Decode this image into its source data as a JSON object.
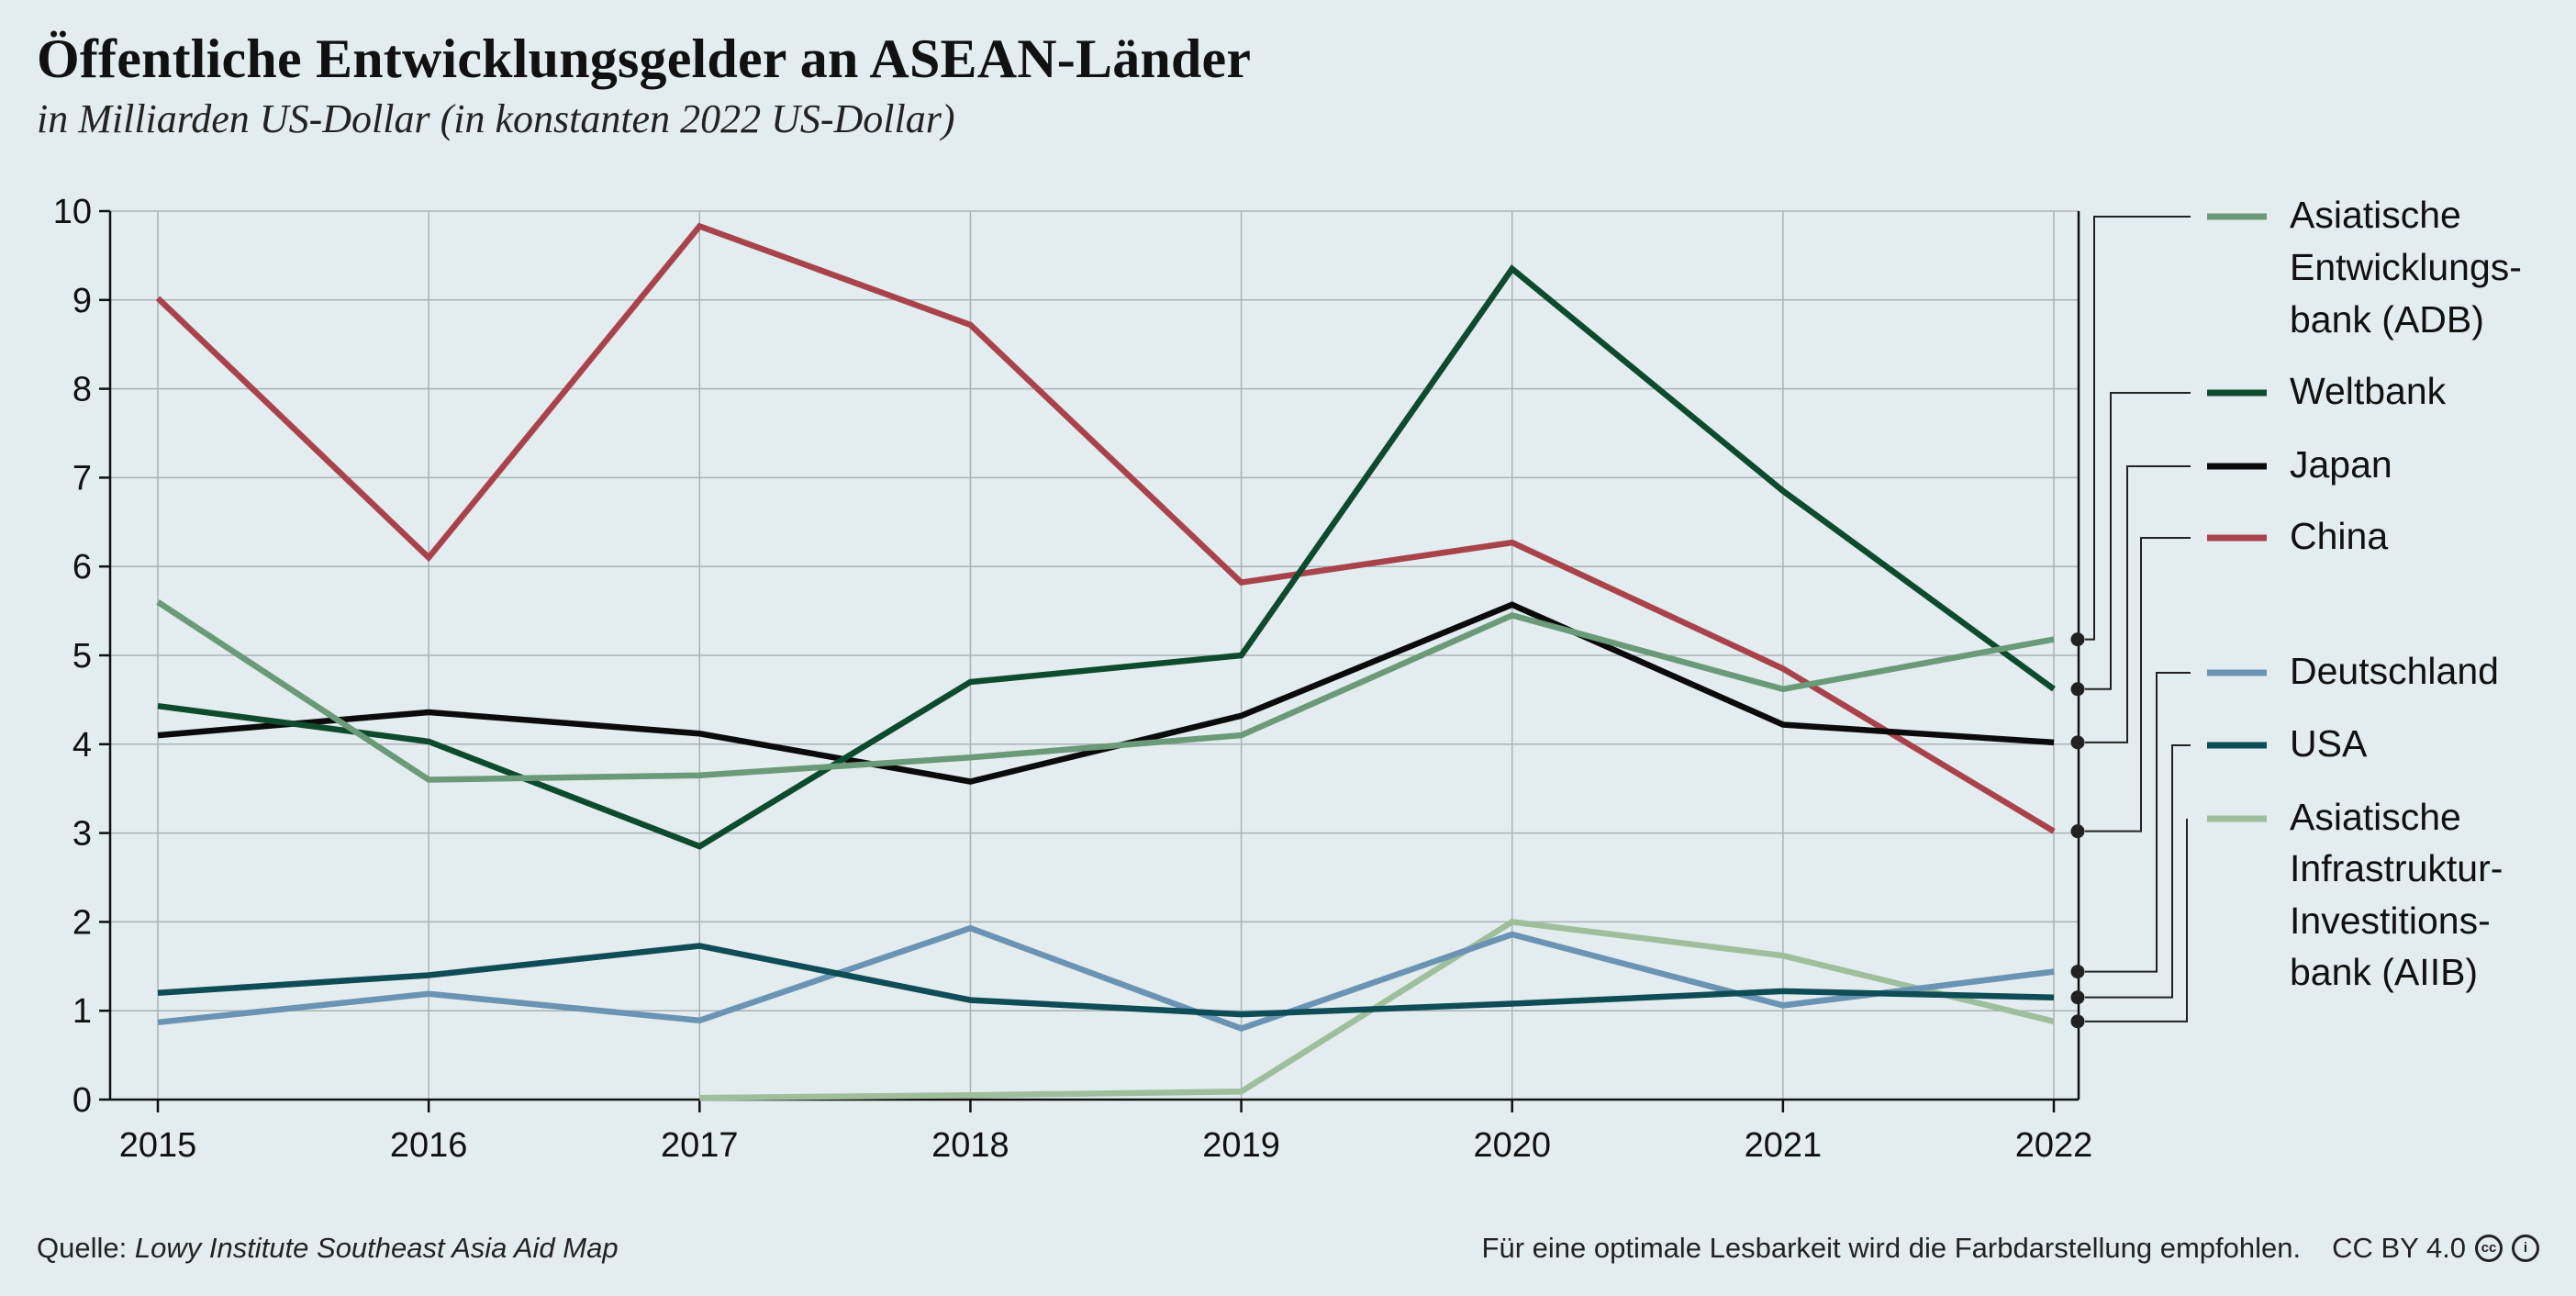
{
  "header": {
    "title": "Öffentliche Entwicklungsgelder an ASEAN-Länder",
    "subtitle": "in Milliarden US-Dollar (in konstanten 2022 US-Dollar)"
  },
  "footer": {
    "source_label": "Quelle:",
    "source_name": "Lowy Institute Southeast Asia Aid Map",
    "note": "Für eine optimale Lesbarkeit wird die Farbdarstellung empfohlen.",
    "license": "CC BY 4.0",
    "icons": [
      "cc-icon",
      "by-icon"
    ]
  },
  "chart_data": {
    "type": "line",
    "title": "Öffentliche Entwicklungsgelder an ASEAN-Länder",
    "subtitle": "in Milliarden US-Dollar (in konstanten 2022 US-Dollar)",
    "xlabel": "",
    "ylabel": "",
    "x": [
      2015,
      2016,
      2017,
      2018,
      2019,
      2020,
      2021,
      2022
    ],
    "ylim": [
      0,
      10
    ],
    "yticks": [
      0,
      1,
      2,
      3,
      4,
      5,
      6,
      7,
      8,
      9,
      10
    ],
    "grid": true,
    "legend_position": "right",
    "series": [
      {
        "name": "Asiatische Entwicklungs-bank (ADB)",
        "legend_lines": [
          "Asiatische",
          "Entwicklungs-",
          "bank (ADB)"
        ],
        "color": "#6a9a78",
        "values": [
          5.6,
          3.6,
          3.65,
          3.85,
          4.1,
          5.45,
          4.62,
          5.18
        ]
      },
      {
        "name": "Weltbank",
        "legend_lines": [
          "Weltbank"
        ],
        "color": "#0d4a2e",
        "values": [
          4.43,
          4.03,
          2.85,
          4.7,
          5.0,
          9.35,
          6.85,
          4.62
        ]
      },
      {
        "name": "Japan",
        "legend_lines": [
          "Japan"
        ],
        "color": "#0b0b0b",
        "values": [
          4.1,
          4.36,
          4.12,
          3.58,
          4.32,
          5.57,
          4.22,
          4.02
        ]
      },
      {
        "name": "China",
        "legend_lines": [
          "China"
        ],
        "color": "#a9434b",
        "values": [
          9.02,
          6.1,
          9.83,
          8.72,
          5.82,
          6.27,
          4.85,
          3.02
        ]
      },
      {
        "name": "Deutschland",
        "legend_lines": [
          "Deutschland"
        ],
        "color": "#6a93b4",
        "values": [
          0.87,
          1.19,
          0.89,
          1.93,
          0.8,
          1.86,
          1.06,
          1.44
        ]
      },
      {
        "name": "USA",
        "legend_lines": [
          "USA"
        ],
        "color": "#0e4c56",
        "values": [
          1.2,
          1.4,
          1.73,
          1.12,
          0.96,
          1.08,
          1.22,
          1.15
        ]
      },
      {
        "name": "Asiatische Infrastruktur-Investitions-bank (AIIB)",
        "legend_lines": [
          "Asiatische",
          "Infrastruktur-",
          "Investitions-",
          "bank (AIIB)"
        ],
        "color": "#9fbf9c",
        "values": [
          null,
          null,
          0.02,
          0.05,
          0.09,
          2.0,
          1.62,
          0.88
        ]
      }
    ]
  }
}
